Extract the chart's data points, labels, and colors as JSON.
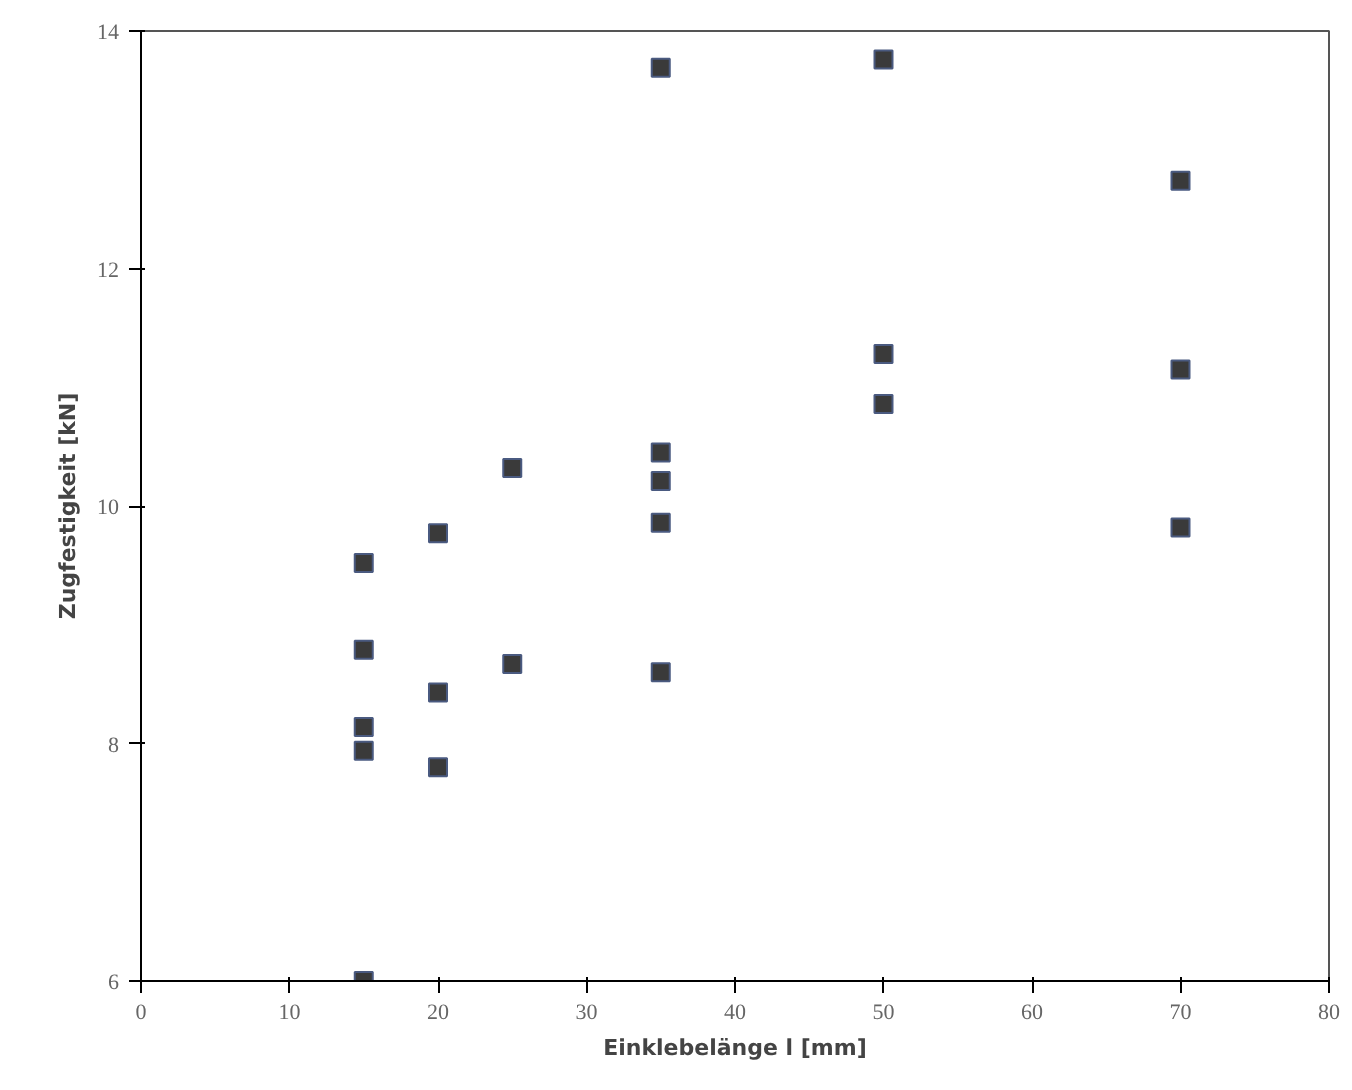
{
  "chart_data": {
    "type": "scatter",
    "xlabel": "Einklebelänge l [mm]",
    "ylabel": "Zugfestigkeit [kN]",
    "x": [
      15,
      15,
      15,
      15,
      15,
      20,
      20,
      20,
      25,
      25,
      35,
      35,
      35,
      35,
      35,
      50,
      50,
      50,
      70,
      70,
      70
    ],
    "values": [
      9.52,
      8.79,
      8.14,
      7.94,
      6.0,
      9.77,
      8.43,
      7.8,
      10.32,
      8.67,
      13.69,
      10.45,
      10.21,
      9.86,
      8.6,
      13.76,
      11.28,
      10.86,
      12.74,
      11.15,
      9.82
    ],
    "color": "#3a3a3a",
    "marker": "square",
    "grid": false,
    "xlim": [
      0,
      80
    ],
    "xticks": [
      0,
      10,
      20,
      30,
      40,
      50,
      60,
      70,
      80
    ],
    "ylim": [
      6,
      14
    ],
    "yticks": [
      6,
      8,
      10,
      12,
      14
    ]
  }
}
